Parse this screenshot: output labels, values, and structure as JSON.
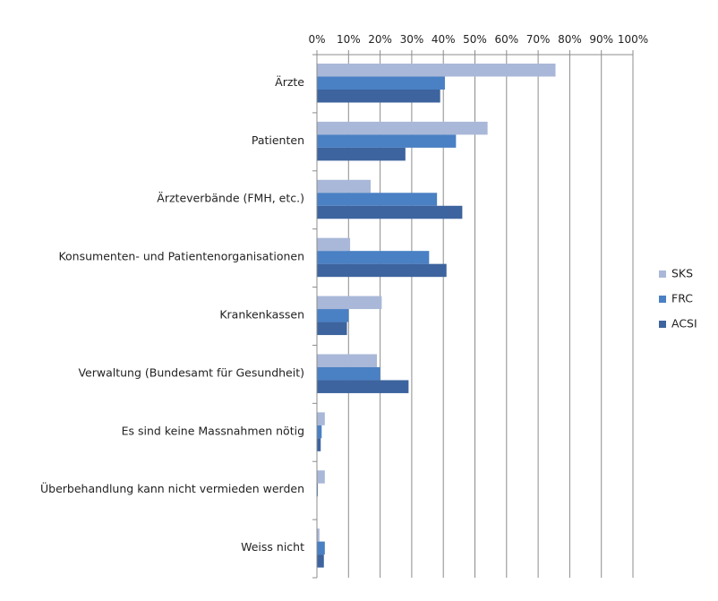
{
  "chart_data": {
    "type": "bar",
    "orientation": "horizontal",
    "title": "",
    "xlabel": "",
    "ylabel": "",
    "xlim": [
      0,
      100
    ],
    "x_ticks": [
      "0%",
      "10%",
      "20%",
      "30%",
      "40%",
      "50%",
      "60%",
      "70%",
      "80%",
      "90%",
      "100%"
    ],
    "axis_position": "top",
    "grid": true,
    "legend_position": "right",
    "categories": [
      "Ärzte",
      "Patienten",
      "Ärzteverbände (FMH, etc.)",
      "Konsumenten- und Patientenorganisationen",
      "Krankenkassen",
      "Verwaltung (Bundesamt für Gesundheit)",
      "Es sind keine Massnahmen nötig",
      "Überbehandlung kann nicht vermieden werden",
      "Weiss nicht"
    ],
    "series": [
      {
        "name": "SKS",
        "color": "#a9b8d8",
        "values": [
          75.5,
          54,
          17,
          10.5,
          20.5,
          19,
          2.5,
          2.5,
          0.8
        ]
      },
      {
        "name": "FRC",
        "color": "#4a80c4",
        "values": [
          40.5,
          44,
          38,
          35.5,
          10,
          20,
          1.5,
          0.3,
          2.5
        ]
      },
      {
        "name": "ACSI",
        "color": "#3d649e",
        "values": [
          39,
          28,
          46,
          41,
          9.5,
          29,
          1.2,
          0,
          2.2
        ]
      }
    ]
  }
}
